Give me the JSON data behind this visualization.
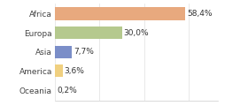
{
  "categories": [
    "Africa",
    "Europa",
    "Asia",
    "America",
    "Oceania"
  ],
  "values": [
    58.4,
    30.0,
    7.7,
    3.6,
    0.2
  ],
  "bar_colors": [
    "#e8a97e",
    "#b5c98e",
    "#7b8ec8",
    "#f0d080",
    "#c8d8b0"
  ],
  "labels": [
    "58,4%",
    "30,0%",
    "7,7%",
    "3,6%",
    "0,2%"
  ],
  "xlim": [
    0,
    73
  ],
  "background_color": "#ffffff",
  "label_fontsize": 6.5,
  "tick_fontsize": 6.5
}
